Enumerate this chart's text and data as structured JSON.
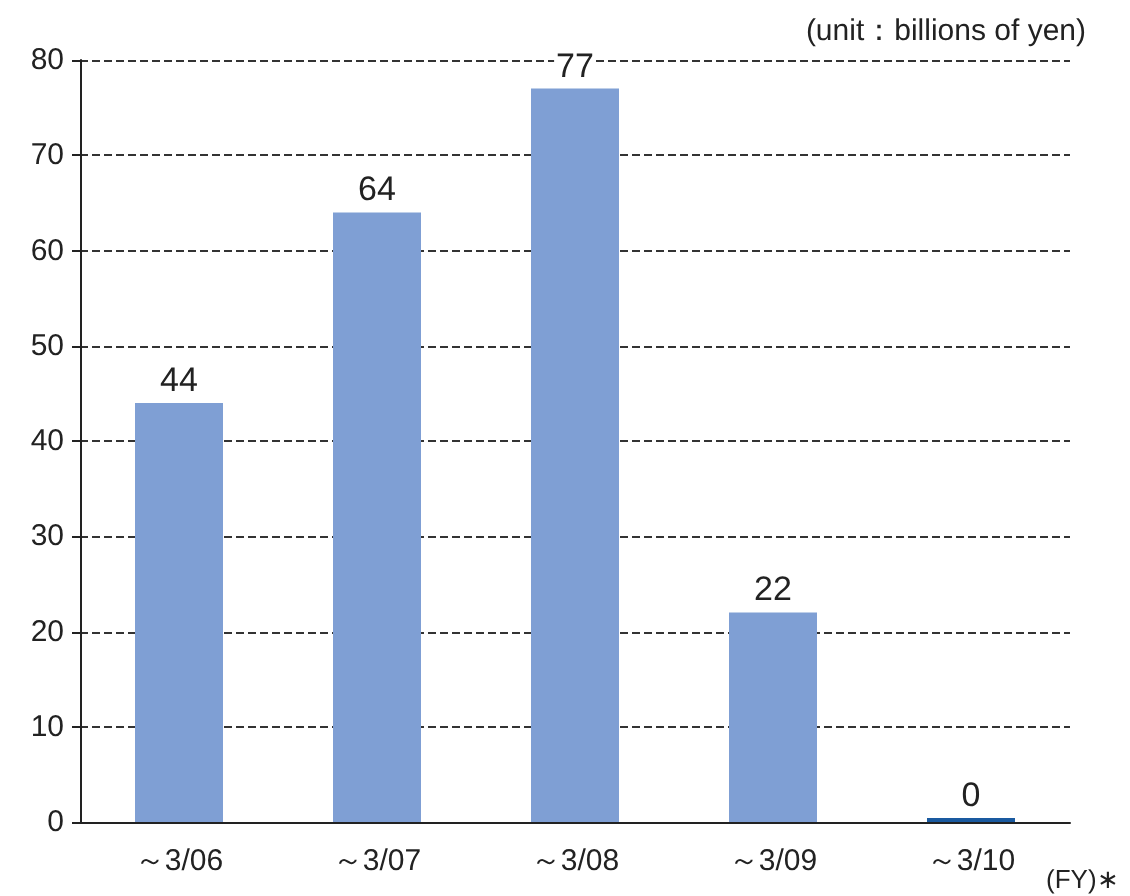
{
  "chart_data": {
    "type": "bar",
    "categories": [
      "～3/06",
      "～3/07",
      "～3/08",
      "～3/09",
      "～3/10"
    ],
    "values": [
      44,
      64,
      77,
      22,
      0
    ],
    "colors": [
      "#7f9fd4",
      "#7f9fd4",
      "#7f9fd4",
      "#7f9fd4",
      "#1a5aa0"
    ],
    "xlabel": "(FY)∗",
    "annotations": [
      "(unit：billions of yen)"
    ],
    "ylim": [
      0,
      80
    ],
    "yticks": [
      0,
      10,
      20,
      30,
      40,
      50,
      60,
      70,
      80
    ],
    "grid": "y",
    "data_labels": true
  }
}
